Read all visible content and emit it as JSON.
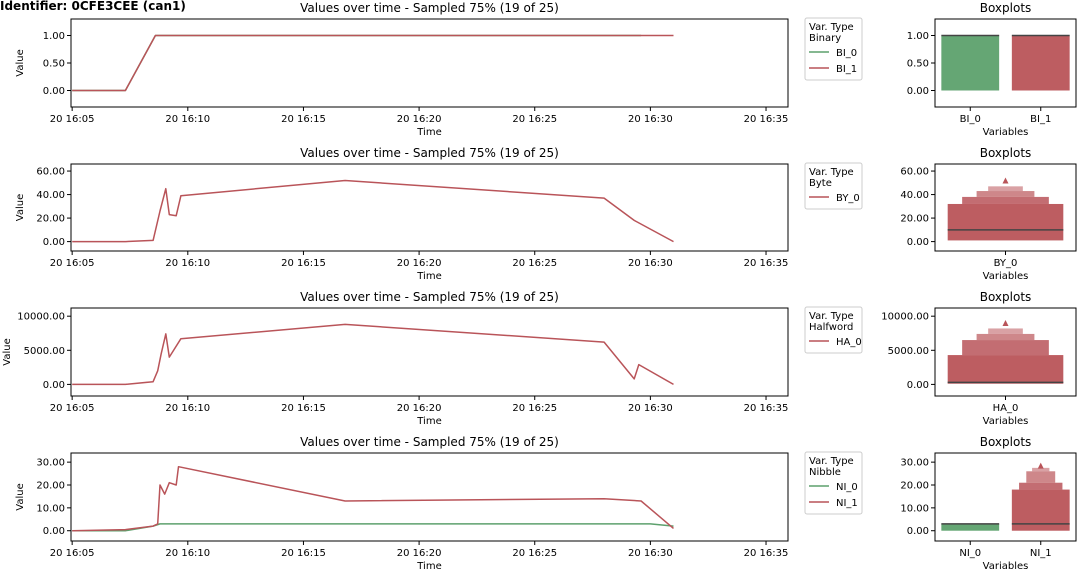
{
  "identifier": "Identifier: 0CFE3CEE (can1)",
  "colors": {
    "green": "#5da16d",
    "red": "#b95459",
    "grid_frame": "#000000"
  },
  "chart_data": [
    {
      "type": "line",
      "title": "Values over time - Sampled 75% (19 of 25)",
      "xlabel": "Time",
      "ylabel": "Value",
      "xtick_labels": [
        "20 16:05",
        "20 16:10",
        "20 16:15",
        "20 16:20",
        "20 16:25",
        "20 16:30",
        "20 16:35"
      ],
      "xtick_minutes": [
        5,
        10,
        15,
        20,
        25,
        30,
        35
      ],
      "xlim_minutes": [
        4.95,
        35.95
      ],
      "ylim": [
        -0.3,
        1.3
      ],
      "yticks": [
        0,
        0.5,
        1.0
      ],
      "ytick_labels": [
        "0.00",
        "0.50",
        "1.00"
      ],
      "legend": {
        "title": "Var. Type\nBinary",
        "entries": [
          "BI_0",
          "BI_1"
        ],
        "placement": "outside right"
      },
      "series": [
        {
          "name": "BI_0",
          "color": "green",
          "points": [
            [
              5.0,
              0
            ],
            [
              7.3,
              0
            ],
            [
              8.6,
              1
            ],
            [
              29.6,
              1
            ]
          ]
        },
        {
          "name": "BI_1",
          "color": "red",
          "points": [
            [
              5.0,
              0
            ],
            [
              7.3,
              0
            ],
            [
              8.6,
              1
            ],
            [
              31.0,
              1
            ]
          ]
        }
      ],
      "boxplot": {
        "type": "boxplot",
        "title": "Boxplots",
        "xlabel": "Variables",
        "categories": [
          "BI_0",
          "BI_1"
        ],
        "ylim": [
          -0.3,
          1.3
        ],
        "yticks": [
          0,
          0.5,
          1.0
        ],
        "ytick_labels": [
          "0.00",
          "0.50",
          "1.00"
        ],
        "boxes": [
          {
            "name": "BI_0",
            "color": "green",
            "low": 0,
            "high": 1,
            "median": 1,
            "upper_steps": [],
            "outlier": null
          },
          {
            "name": "BI_1",
            "color": "red",
            "low": 0,
            "high": 1,
            "median": 1,
            "upper_steps": [],
            "outlier": null
          }
        ]
      }
    },
    {
      "type": "line",
      "title": "Values over time - Sampled 75% (19 of 25)",
      "xlabel": "Time",
      "ylabel": "Value",
      "xtick_labels": [
        "20 16:05",
        "20 16:10",
        "20 16:15",
        "20 16:20",
        "20 16:25",
        "20 16:30",
        "20 16:35"
      ],
      "xtick_minutes": [
        5,
        10,
        15,
        20,
        25,
        30,
        35
      ],
      "xlim_minutes": [
        4.95,
        35.95
      ],
      "ylim": [
        -8,
        66
      ],
      "yticks": [
        0,
        20,
        40,
        60
      ],
      "ytick_labels": [
        "0.00",
        "20.00",
        "40.00",
        "60.00"
      ],
      "legend": {
        "title": "Var. Type\nByte",
        "entries": [
          "BY_0"
        ],
        "placement": "outside right"
      },
      "series": [
        {
          "name": "BY_0",
          "color": "red",
          "points": [
            [
              5.0,
              0
            ],
            [
              7.3,
              0
            ],
            [
              8.5,
              1
            ],
            [
              8.8,
              26
            ],
            [
              9.05,
              45
            ],
            [
              9.2,
              23
            ],
            [
              9.5,
              22
            ],
            [
              9.7,
              39
            ],
            [
              16.8,
              52
            ],
            [
              28.0,
              37
            ],
            [
              29.3,
              18
            ],
            [
              31.0,
              0
            ]
          ]
        }
      ],
      "boxplot": {
        "type": "boxplot",
        "title": "Boxplots",
        "xlabel": "Variables",
        "categories": [
          "BY_0"
        ],
        "ylim": [
          -8,
          66
        ],
        "yticks": [
          0,
          20,
          40,
          60
        ],
        "ytick_labels": [
          "0.00",
          "20.00",
          "40.00",
          "60.00"
        ],
        "boxes": [
          {
            "name": "BY_0",
            "color": "red",
            "low": 1,
            "high": 32,
            "median": 10,
            "upper_steps": [
              [
                32,
                38,
                0.75
              ],
              [
                38,
                43,
                0.5
              ],
              [
                43,
                47,
                0.3
              ]
            ],
            "outlier": 52
          }
        ]
      }
    },
    {
      "type": "line",
      "title": "Values over time - Sampled 75% (19 of 25)",
      "xlabel": "Time",
      "ylabel": "Value",
      "xtick_labels": [
        "20 16:05",
        "20 16:10",
        "20 16:15",
        "20 16:20",
        "20 16:25",
        "20 16:30",
        "20 16:35"
      ],
      "xtick_minutes": [
        5,
        10,
        15,
        20,
        25,
        30,
        35
      ],
      "xlim_minutes": [
        4.95,
        35.95
      ],
      "ylim": [
        -1700,
        11200
      ],
      "yticks": [
        0,
        5000,
        10000
      ],
      "ytick_labels": [
        "0.00",
        "5000.00",
        "10000.00"
      ],
      "legend": {
        "title": "Var. Type\nHalfword",
        "entries": [
          "HA_0"
        ],
        "placement": "outside right"
      },
      "series": [
        {
          "name": "HA_0",
          "color": "red",
          "points": [
            [
              5.0,
              0
            ],
            [
              7.3,
              0
            ],
            [
              8.5,
              400
            ],
            [
              8.7,
              2000
            ],
            [
              8.85,
              4500
            ],
            [
              9.05,
              7400
            ],
            [
              9.2,
              4000
            ],
            [
              9.7,
              6700
            ],
            [
              16.8,
              8800
            ],
            [
              28.0,
              6200
            ],
            [
              29.3,
              800
            ],
            [
              29.5,
              2900
            ],
            [
              31.0,
              0
            ]
          ]
        }
      ],
      "boxplot": {
        "type": "boxplot",
        "title": "Boxplots",
        "xlabel": "Variables",
        "categories": [
          "HA_0"
        ],
        "ylim": [
          -1700,
          11200
        ],
        "yticks": [
          0,
          5000,
          10000
        ],
        "ytick_labels": [
          "0.00",
          "5000.00",
          "10000.00"
        ],
        "boxes": [
          {
            "name": "HA_0",
            "color": "red",
            "low": 100,
            "high": 4300,
            "median": 300,
            "upper_steps": [
              [
                4300,
                6500,
                0.75
              ],
              [
                6500,
                7400,
                0.5
              ],
              [
                7400,
                8200,
                0.3
              ]
            ],
            "outlier": 9000
          }
        ]
      }
    },
    {
      "type": "line",
      "title": "Values over time - Sampled 75% (19 of 25)",
      "xlabel": "Time",
      "ylabel": "Value",
      "xtick_labels": [
        "20 16:05",
        "20 16:10",
        "20 16:15",
        "20 16:20",
        "20 16:25",
        "20 16:30",
        "20 16:35"
      ],
      "xtick_minutes": [
        5,
        10,
        15,
        20,
        25,
        30,
        35
      ],
      "xlim_minutes": [
        4.95,
        35.95
      ],
      "ylim": [
        -4.5,
        34
      ],
      "yticks": [
        0,
        10,
        20,
        30
      ],
      "ytick_labels": [
        "0.00",
        "10.00",
        "20.00",
        "30.00"
      ],
      "legend": {
        "title": "Var. Type\nNibble",
        "entries": [
          "NI_0",
          "NI_1"
        ],
        "placement": "outside right"
      },
      "series": [
        {
          "name": "NI_0",
          "color": "green",
          "points": [
            [
              5.0,
              0
            ],
            [
              7.3,
              0
            ],
            [
              8.5,
              2
            ],
            [
              8.8,
              3
            ],
            [
              30.0,
              3
            ],
            [
              31.0,
              2
            ]
          ]
        },
        {
          "name": "NI_1",
          "color": "red",
          "points": [
            [
              5.0,
              0
            ],
            [
              7.3,
              0.5
            ],
            [
              8.5,
              2
            ],
            [
              8.7,
              3
            ],
            [
              8.8,
              20
            ],
            [
              9.0,
              16
            ],
            [
              9.2,
              21
            ],
            [
              9.5,
              20
            ],
            [
              9.6,
              28
            ],
            [
              16.8,
              13
            ],
            [
              28.0,
              14
            ],
            [
              29.6,
              13
            ],
            [
              31.0,
              1
            ]
          ]
        }
      ],
      "boxplot": {
        "type": "boxplot",
        "title": "Boxplots",
        "xlabel": "Variables",
        "categories": [
          "NI_0",
          "NI_1"
        ],
        "ylim": [
          -4.5,
          34
        ],
        "yticks": [
          0,
          10,
          20,
          30
        ],
        "ytick_labels": [
          "0.00",
          "10.00",
          "20.00",
          "30.00"
        ],
        "boxes": [
          {
            "name": "NI_0",
            "color": "green",
            "low": 0,
            "high": 3,
            "median": 3,
            "upper_steps": [],
            "outlier": null
          },
          {
            "name": "NI_1",
            "color": "red",
            "low": 0,
            "high": 18,
            "median": 3,
            "upper_steps": [
              [
                18,
                21,
                0.75
              ],
              [
                21,
                26,
                0.5
              ],
              [
                26,
                27.5,
                0.3
              ]
            ],
            "outlier": 28.5
          }
        ]
      }
    }
  ]
}
